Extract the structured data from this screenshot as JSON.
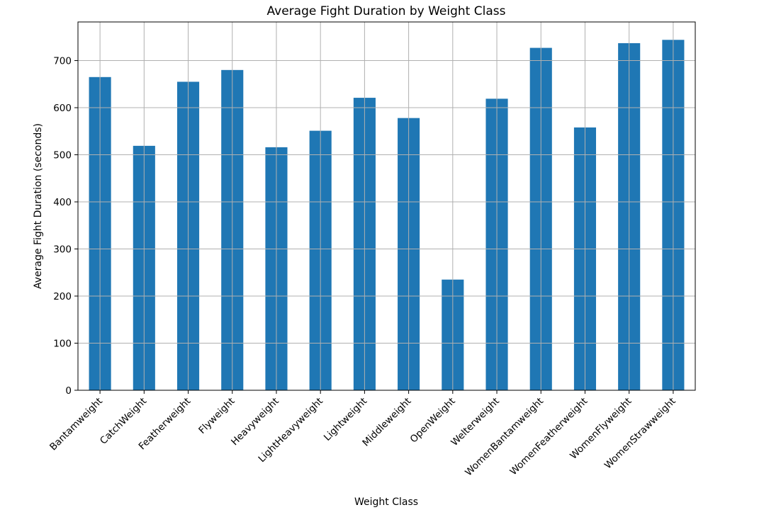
{
  "chart_data": {
    "type": "bar",
    "title": "Average Fight Duration by Weight Class",
    "xlabel": "Weight Class",
    "ylabel": "Average Fight Duration (seconds)",
    "categories": [
      "Bantamweight",
      "CatchWeight",
      "Featherweight",
      "Flyweight",
      "Heavyweight",
      "LightHeavyweight",
      "Lightweight",
      "Middleweight",
      "OpenWeight",
      "Welterweight",
      "WomenBantamweight",
      "WomenFeatherweight",
      "WomenFlyweight",
      "WomenStrawweight"
    ],
    "values": [
      665,
      519,
      655,
      680,
      516,
      551,
      621,
      578,
      235,
      619,
      727,
      558,
      737,
      744
    ],
    "ylim": [
      0,
      782
    ],
    "yticks": [
      0,
      100,
      200,
      300,
      400,
      500,
      600,
      700
    ],
    "grid": true,
    "legend": "none",
    "bar_color": "#1f77b4"
  }
}
